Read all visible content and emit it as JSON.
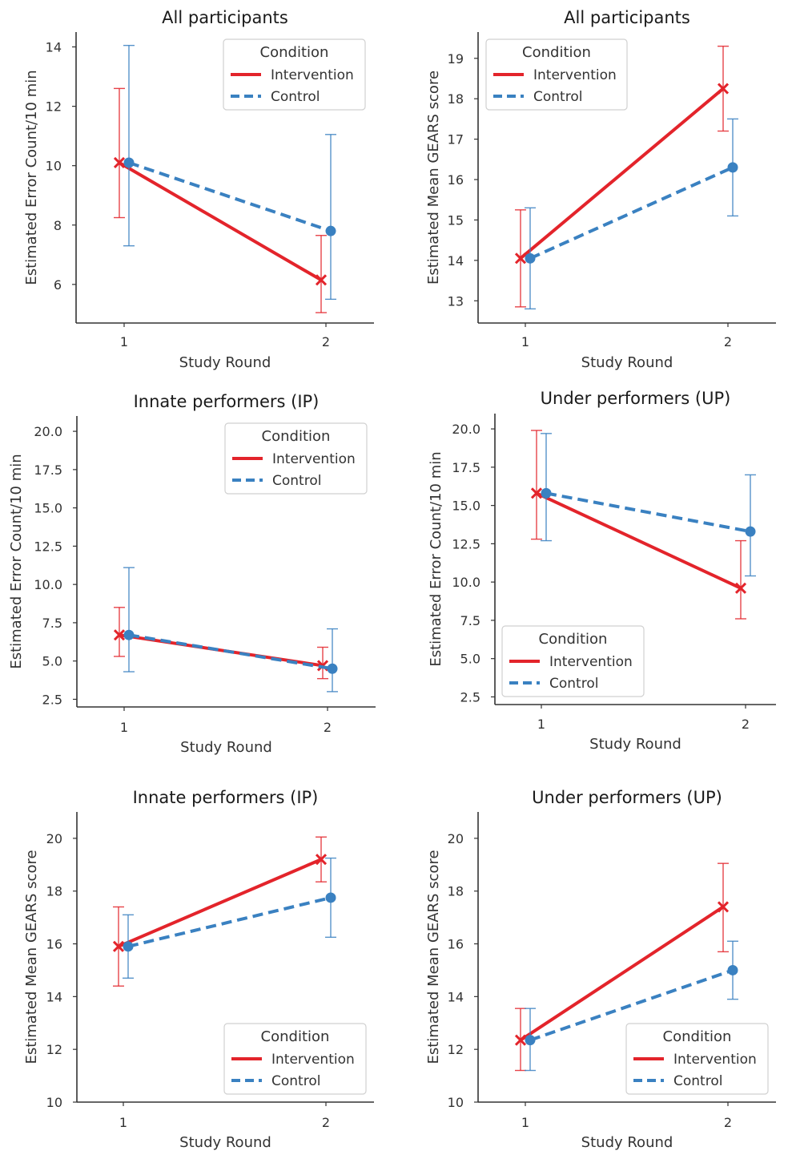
{
  "figure": {
    "colors": {
      "intervention": "#e3242b",
      "control": "#3a81c1",
      "axis": "#333333"
    },
    "marker_names": {
      "intervention": "x-marker",
      "control": "circle-marker"
    }
  },
  "chart_data": [
    {
      "type": "line",
      "title": "All participants",
      "xlabel": "Study Round",
      "ylabel": "Estimated Error Count/10 min",
      "categories": [
        "1",
        "2"
      ],
      "yticks": [
        "6",
        "8",
        "10",
        "12",
        "14"
      ],
      "ylim": [
        4.7,
        14.5
      ],
      "legend": {
        "title": "Condition",
        "position": "top-right"
      },
      "series": [
        {
          "name": "Intervention",
          "values": [
            10.1,
            6.15
          ],
          "ci_low": [
            8.25,
            5.05
          ],
          "ci_high": [
            12.6,
            7.65
          ]
        },
        {
          "name": "Control",
          "values": [
            10.1,
            7.8
          ],
          "ci_low": [
            7.3,
            5.5
          ],
          "ci_high": [
            14.05,
            11.05
          ]
        }
      ]
    },
    {
      "type": "line",
      "title": "All participants",
      "xlabel": "Study Round",
      "ylabel": "Estimated Mean GEARS score",
      "categories": [
        "1",
        "2"
      ],
      "yticks": [
        "13",
        "14",
        "15",
        "16",
        "17",
        "18",
        "19"
      ],
      "ylim": [
        12.45,
        19.65
      ],
      "legend": {
        "title": "Condition",
        "position": "top-left"
      },
      "series": [
        {
          "name": "Intervention",
          "values": [
            14.05,
            18.25
          ],
          "ci_low": [
            12.85,
            17.2
          ],
          "ci_high": [
            15.25,
            19.3
          ]
        },
        {
          "name": "Control",
          "values": [
            14.05,
            16.3
          ],
          "ci_low": [
            12.8,
            15.1
          ],
          "ci_high": [
            15.3,
            17.5
          ]
        }
      ]
    },
    {
      "type": "line",
      "title": "Innate performers (IP)",
      "xlabel": "Study Round",
      "ylabel": "Estimated Error Count/10 min",
      "categories": [
        "1",
        "2"
      ],
      "yticks": [
        "2.5",
        "5.0",
        "7.5",
        "10.0",
        "12.5",
        "15.0",
        "17.5",
        "20.0"
      ],
      "ylim": [
        2.0,
        21.0
      ],
      "legend": {
        "title": "Condition",
        "position": "top-right"
      },
      "series": [
        {
          "name": "Intervention",
          "values": [
            6.7,
            4.7
          ],
          "ci_low": [
            5.3,
            3.85
          ],
          "ci_high": [
            8.5,
            5.9
          ]
        },
        {
          "name": "Control",
          "values": [
            6.7,
            4.5
          ],
          "ci_low": [
            4.3,
            3.0
          ],
          "ci_high": [
            11.1,
            7.1
          ]
        }
      ]
    },
    {
      "type": "line",
      "title": "Under performers (UP)",
      "xlabel": "Study Round",
      "ylabel": "Estimated Error Count/10 min",
      "categories": [
        "1",
        "2"
      ],
      "yticks": [
        "2.5",
        "5.0",
        "7.5",
        "10.0",
        "12.5",
        "15.0",
        "17.5",
        "20.0"
      ],
      "ylim": [
        2.0,
        21.0
      ],
      "legend": {
        "title": "Condition",
        "position": "bottom-left"
      },
      "series": [
        {
          "name": "Intervention",
          "values": [
            15.8,
            9.6
          ],
          "ci_low": [
            12.8,
            7.6
          ],
          "ci_high": [
            19.9,
            12.7
          ]
        },
        {
          "name": "Control",
          "values": [
            15.8,
            13.3
          ],
          "ci_low": [
            12.7,
            10.4
          ],
          "ci_high": [
            19.7,
            17.0
          ]
        }
      ]
    },
    {
      "type": "line",
      "title": "Innate performers (IP)",
      "xlabel": "Study Round",
      "ylabel": "Estimated Mean GEARS score",
      "categories": [
        "1",
        "2"
      ],
      "yticks": [
        "10",
        "12",
        "14",
        "16",
        "18",
        "20"
      ],
      "ylim": [
        10.0,
        21.0
      ],
      "legend": {
        "title": "Condition",
        "position": "bottom-right"
      },
      "series": [
        {
          "name": "Intervention",
          "values": [
            15.9,
            19.2
          ],
          "ci_low": [
            14.4,
            18.35
          ],
          "ci_high": [
            17.4,
            20.05
          ]
        },
        {
          "name": "Control",
          "values": [
            15.9,
            17.75
          ],
          "ci_low": [
            14.7,
            16.25
          ],
          "ci_high": [
            17.1,
            19.25
          ]
        }
      ]
    },
    {
      "type": "line",
      "title": "Under performers (UP)",
      "xlabel": "Study Round",
      "ylabel": "Estimated Mean GEARS score",
      "categories": [
        "1",
        "2"
      ],
      "yticks": [
        "10",
        "12",
        "14",
        "16",
        "18",
        "20"
      ],
      "ylim": [
        10.0,
        21.0
      ],
      "legend": {
        "title": "Condition",
        "position": "bottom-right"
      },
      "series": [
        {
          "name": "Intervention",
          "values": [
            12.35,
            17.4
          ],
          "ci_low": [
            11.2,
            15.7
          ],
          "ci_high": [
            13.55,
            19.05
          ]
        },
        {
          "name": "Control",
          "values": [
            12.35,
            15.0
          ],
          "ci_low": [
            11.2,
            13.9
          ],
          "ci_high": [
            13.55,
            16.1
          ]
        }
      ]
    }
  ]
}
